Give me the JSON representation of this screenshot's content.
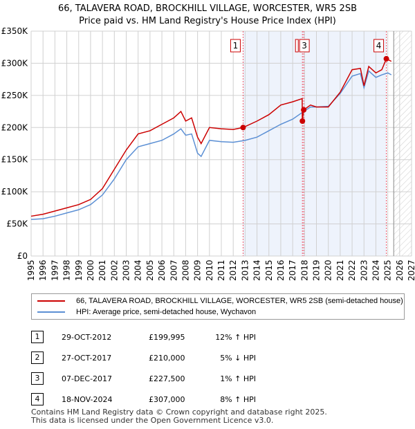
{
  "title_line1": "66, TALAVERA ROAD, BROCKHILL VILLAGE, WORCESTER, WR5 2SB",
  "title_line2": "Price paid vs. HM Land Registry's House Price Index (HPI)",
  "chart_data": {
    "type": "line",
    "title": "66, TALAVERA ROAD, BROCKHILL VILLAGE, WORCESTER, WR5 2SB — Price paid vs. HM Land Registry's House Price Index (HPI)",
    "xlim": [
      1995,
      2027
    ],
    "ylim": [
      0,
      350000
    ],
    "yticks": [
      0,
      50000,
      100000,
      150000,
      200000,
      250000,
      300000,
      350000
    ],
    "ytick_labels": [
      "£0",
      "£50K",
      "£100K",
      "£150K",
      "£200K",
      "£250K",
      "£300K",
      "£350K"
    ],
    "xticks": [
      1995,
      1996,
      1997,
      1998,
      1999,
      2000,
      2001,
      2002,
      2003,
      2004,
      2005,
      2006,
      2007,
      2008,
      2009,
      2010,
      2011,
      2012,
      2013,
      2014,
      2015,
      2016,
      2017,
      2018,
      2019,
      2020,
      2021,
      2022,
      2023,
      2024,
      2025,
      2026,
      2027
    ],
    "shaded_range": [
      2012.83,
      2024.88
    ],
    "hatched_from": 2025.5,
    "series": [
      {
        "name": "66, TALAVERA ROAD, BROCKHILL VILLAGE, WORCESTER, WR5 2SB (semi-detached house)",
        "color": "#cc0000",
        "x": [
          1995,
          1996,
          1997,
          1998,
          1999,
          2000,
          2001,
          2002,
          2003,
          2004,
          2005,
          2006,
          2007,
          2007.6,
          2008,
          2008.5,
          2009,
          2009.3,
          2010,
          2011,
          2012,
          2012.83,
          2014,
          2015,
          2016,
          2017,
          2017.8,
          2017.81,
          2017.93,
          2018.5,
          2019,
          2020,
          2021,
          2022,
          2022.7,
          2023,
          2023.4,
          2024,
          2024.5,
          2024.88,
          2025.3
        ],
        "y": [
          62000,
          65000,
          70000,
          75000,
          80000,
          88000,
          105000,
          135000,
          165000,
          190000,
          195000,
          205000,
          215000,
          225000,
          210000,
          215000,
          185000,
          175000,
          200000,
          198000,
          197000,
          199995,
          210000,
          220000,
          235000,
          240000,
          245000,
          210000,
          227500,
          235000,
          232000,
          232000,
          255000,
          290000,
          292000,
          265000,
          295000,
          285000,
          290000,
          307000,
          303000
        ]
      },
      {
        "name": "HPI: Average price, semi-detached house, Wychavon",
        "color": "#5b8fd4",
        "x": [
          1995,
          1996,
          1997,
          1998,
          1999,
          2000,
          2001,
          2002,
          2003,
          2004,
          2005,
          2006,
          2007,
          2007.6,
          2008,
          2008.5,
          2009,
          2009.3,
          2010,
          2011,
          2012,
          2013,
          2014,
          2015,
          2016,
          2017,
          2017.93,
          2018.5,
          2019,
          2020,
          2021,
          2022,
          2022.7,
          2023,
          2023.4,
          2024,
          2024.5,
          2025,
          2025.3
        ],
        "y": [
          57000,
          58000,
          62000,
          67000,
          72000,
          80000,
          95000,
          120000,
          150000,
          170000,
          175000,
          180000,
          190000,
          198000,
          188000,
          190000,
          160000,
          155000,
          180000,
          178000,
          177000,
          180000,
          185000,
          195000,
          205000,
          213000,
          225000,
          232000,
          232000,
          233000,
          253000,
          280000,
          284000,
          262000,
          288000,
          278000,
          282000,
          285000,
          282000
        ]
      }
    ],
    "sales": [
      {
        "n": "1",
        "x": 2012.83,
        "price": 199995
      },
      {
        "n": "2",
        "x": 2017.82,
        "price": 210000
      },
      {
        "n": "3",
        "x": 2017.93,
        "price": 227500
      },
      {
        "n": "4",
        "x": 2024.88,
        "price": 307000
      }
    ]
  },
  "legend": [
    "66, TALAVERA ROAD, BROCKHILL VILLAGE, WORCESTER, WR5 2SB (semi-detached house)",
    "HPI: Average price, semi-detached house, Wychavon"
  ],
  "table": [
    {
      "n": "1",
      "date": "29-OCT-2012",
      "price": "£199,995",
      "hpi": "12% ↑ HPI"
    },
    {
      "n": "2",
      "date": "27-OCT-2017",
      "price": "£210,000",
      "hpi": "5% ↓ HPI"
    },
    {
      "n": "3",
      "date": "07-DEC-2017",
      "price": "£227,500",
      "hpi": "1% ↑ HPI"
    },
    {
      "n": "4",
      "date": "18-NOV-2024",
      "price": "£307,000",
      "hpi": "8% ↑ HPI"
    }
  ],
  "footer": [
    "Contains HM Land Registry data © Crown copyright and database right 2025.",
    "This data is licensed under the Open Government Licence v3.0."
  ]
}
